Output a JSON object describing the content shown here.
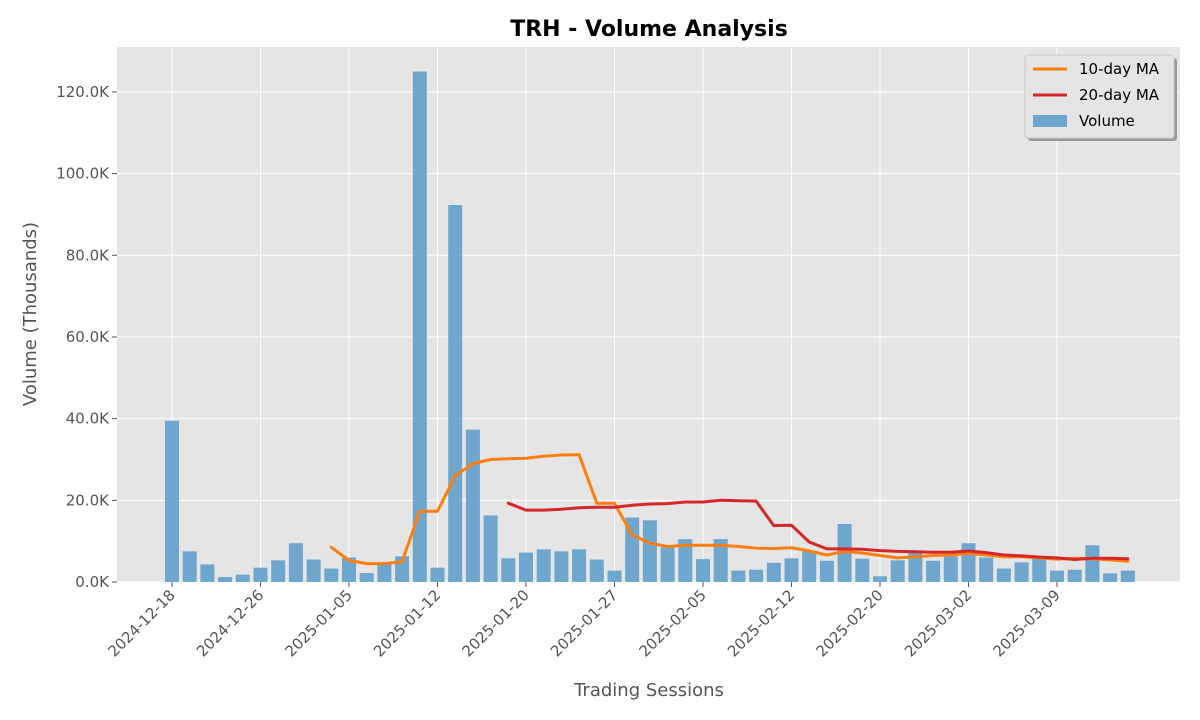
{
  "chart_data": {
    "type": "bar",
    "title": "TRH - Volume Analysis",
    "xlabel": "Trading Sessions",
    "ylabel": "Volume (Thousands)",
    "ylim": [
      0,
      131000
    ],
    "yticks": [
      0,
      20000,
      40000,
      60000,
      80000,
      100000,
      120000
    ],
    "ytick_labels": [
      "0.0K",
      "20.0K",
      "40.0K",
      "60.0K",
      "80.0K",
      "100.0K",
      "120.0K"
    ],
    "xtick_labels": [
      {
        "index": 0,
        "label": "2024-12-18"
      },
      {
        "index": 5,
        "label": "2024-12-26"
      },
      {
        "index": 10,
        "label": "2025-01-05"
      },
      {
        "index": 15,
        "label": "2025-01-12"
      },
      {
        "index": 20,
        "label": "2025-01-20"
      },
      {
        "index": 25,
        "label": "2025-01-27"
      },
      {
        "index": 30,
        "label": "2025-02-05"
      },
      {
        "index": 35,
        "label": "2025-02-12"
      },
      {
        "index": 40,
        "label": "2025-02-20"
      },
      {
        "index": 45,
        "label": "2025-03-02"
      },
      {
        "index": 50,
        "label": "2025-03-09"
      }
    ],
    "grid": true,
    "legend_position": "top-right",
    "series": [
      {
        "name": "Volume",
        "kind": "bar",
        "color": "#5b9bc9",
        "values": [
          39500,
          7500,
          4300,
          1200,
          1800,
          3500,
          5300,
          9500,
          5500,
          3300,
          6000,
          2200,
          4500,
          6300,
          125000,
          3500,
          92300,
          37300,
          16300,
          5800,
          7200,
          8000,
          7500,
          8000,
          5500,
          2800,
          15800,
          15100,
          8500,
          10500,
          5600,
          10500,
          2800,
          3000,
          4700,
          5800,
          7700,
          5200,
          14200,
          5700,
          1400,
          5300,
          7100,
          5200,
          6300,
          9500,
          6000,
          3300,
          4800,
          5800,
          2800,
          3000,
          9000,
          2100,
          2800
        ]
      },
      {
        "name": "10-day MA",
        "kind": "line",
        "color": "#ff7f0e",
        "values": [
          null,
          null,
          null,
          null,
          null,
          null,
          null,
          null,
          null,
          8500,
          5300,
          4500,
          4500,
          5000,
          17300,
          17300,
          26000,
          29000,
          30000,
          30200,
          30300,
          30800,
          31100,
          31200,
          19300,
          19300,
          11500,
          9500,
          8700,
          9000,
          9000,
          9000,
          8700,
          8300,
          8200,
          8400,
          7600,
          6600,
          7500,
          7100,
          6500,
          5900,
          6200,
          6500,
          6600,
          7000,
          6600,
          6200,
          6200,
          5900,
          5600,
          5800,
          5700,
          5400,
          5100
        ]
      },
      {
        "name": "20-day MA",
        "kind": "line",
        "color": "#d62728",
        "values": [
          null,
          null,
          null,
          null,
          null,
          null,
          null,
          null,
          null,
          null,
          null,
          null,
          null,
          null,
          null,
          null,
          null,
          null,
          null,
          19300,
          17600,
          17600,
          17800,
          18200,
          18300,
          18300,
          18800,
          19100,
          19200,
          19600,
          19600,
          20000,
          19900,
          19800,
          13800,
          13900,
          9800,
          8100,
          8100,
          8000,
          7700,
          7500,
          7400,
          7300,
          7300,
          7600,
          7200,
          6600,
          6400,
          6100,
          5900,
          5500,
          5800,
          5800,
          5700
        ]
      }
    ]
  }
}
